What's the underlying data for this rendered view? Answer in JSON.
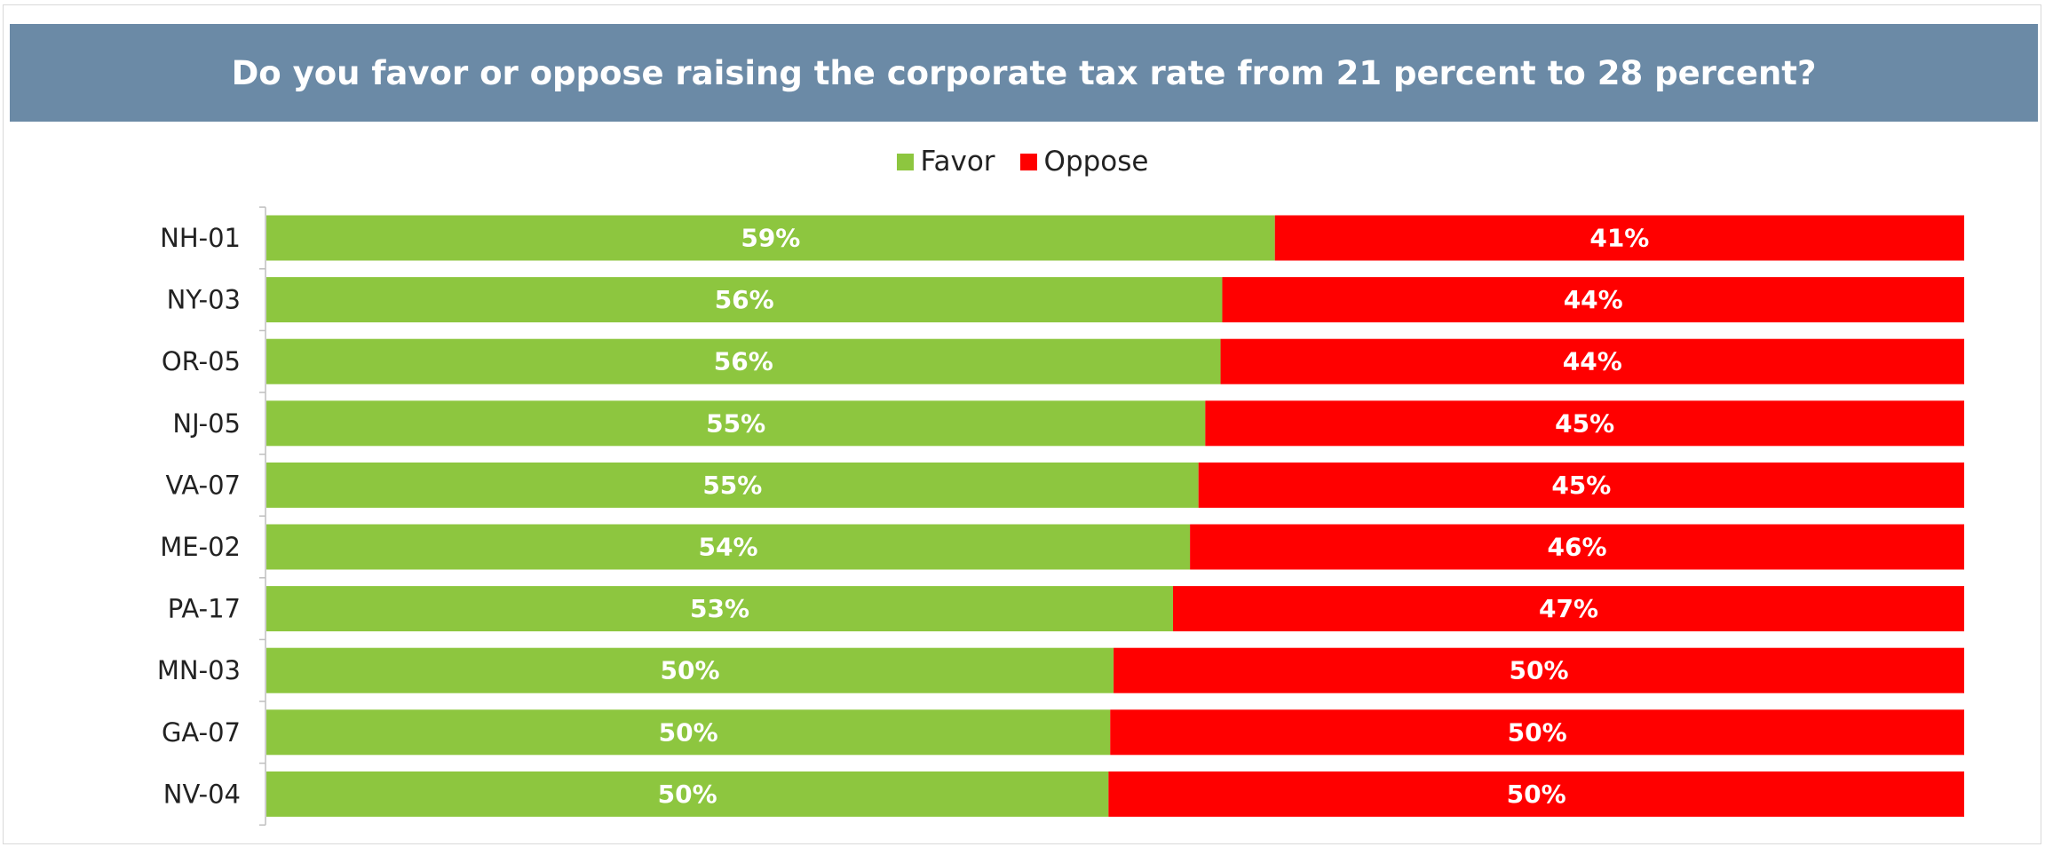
{
  "chart_data": {
    "type": "bar",
    "orientation": "horizontal",
    "stacked": true,
    "percent": true,
    "title": "Do you favor or oppose raising the corporate tax rate from 21 percent to 28 percent?",
    "categories": [
      "NH-01",
      "NY-03",
      "OR-05",
      "NJ-05",
      "VA-07",
      "ME-02",
      "PA-17",
      "MN-03",
      "GA-07",
      "NV-04"
    ],
    "series": [
      {
        "name": "Favor",
        "color": "#8dc63f",
        "values": [
          59.4,
          56.3,
          56.2,
          55.3,
          54.9,
          54.4,
          53.4,
          49.9,
          49.7,
          49.6
        ],
        "labels": [
          "59%",
          "56%",
          "56%",
          "55%",
          "55%",
          "54%",
          "53%",
          "50%",
          "50%",
          "50%"
        ]
      },
      {
        "name": "Oppose",
        "color": "#ff0000",
        "values": [
          40.6,
          43.7,
          43.8,
          44.7,
          45.1,
          45.6,
          46.6,
          50.1,
          50.3,
          50.4
        ],
        "labels": [
          "41%",
          "44%",
          "44%",
          "45%",
          "45%",
          "46%",
          "47%",
          "50%",
          "50%",
          "50%"
        ]
      }
    ],
    "xlim": [
      0,
      100
    ],
    "legend_position": "top-center",
    "grid": false
  },
  "colors": {
    "title_background": "#6b8aa6",
    "title_text": "#ffffff",
    "data_label": "#ffffff",
    "category_label": "#222222",
    "axis_line": "#bfbfbf"
  }
}
